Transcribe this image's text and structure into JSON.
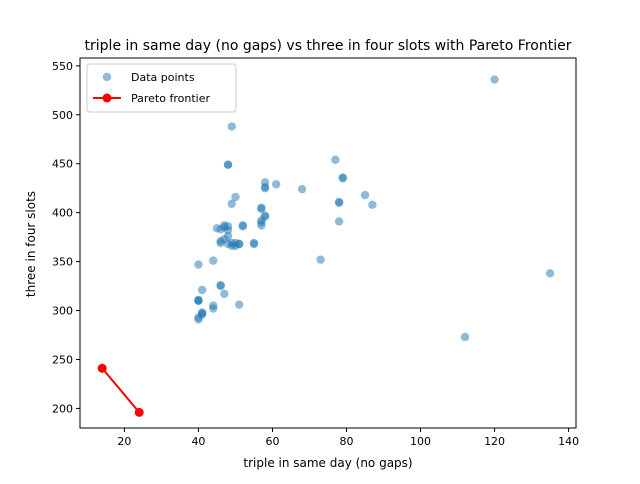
{
  "chart_data": {
    "type": "scatter",
    "title": "triple in same day (no gaps) vs three in four slots with Pareto Frontier",
    "xlabel": "triple in same day (no gaps)",
    "ylabel": "three in four slots",
    "xlim": [
      8,
      142
    ],
    "ylim": [
      180,
      558
    ],
    "xticks": [
      20,
      40,
      60,
      80,
      100,
      120,
      140
    ],
    "yticks": [
      200,
      250,
      300,
      350,
      400,
      450,
      500,
      550
    ],
    "grid": false,
    "legend_position": "top-left",
    "series": [
      {
        "name": "Data points",
        "kind": "scatter",
        "color": "#1f77b4",
        "alpha": 0.5,
        "points": [
          [
            120,
            536
          ],
          [
            49,
            488
          ],
          [
            77,
            454
          ],
          [
            48,
            449
          ],
          [
            48,
            449
          ],
          [
            58,
            431
          ],
          [
            61,
            429
          ],
          [
            58,
            426
          ],
          [
            58,
            425
          ],
          [
            68,
            424
          ],
          [
            79,
            436
          ],
          [
            79,
            435
          ],
          [
            85,
            418
          ],
          [
            50,
            416
          ],
          [
            78,
            411
          ],
          [
            78,
            410
          ],
          [
            49,
            409
          ],
          [
            87,
            408
          ],
          [
            57,
            405
          ],
          [
            57,
            404
          ],
          [
            58,
            397
          ],
          [
            58,
            396
          ],
          [
            57,
            392
          ],
          [
            57,
            390
          ],
          [
            78,
            391
          ],
          [
            57,
            387
          ],
          [
            47,
            387
          ],
          [
            48,
            386
          ],
          [
            52,
            387
          ],
          [
            52,
            386
          ],
          [
            47,
            385
          ],
          [
            45,
            384
          ],
          [
            46,
            383
          ],
          [
            48,
            382
          ],
          [
            48,
            376
          ],
          [
            47,
            373
          ],
          [
            46,
            371
          ],
          [
            46,
            369
          ],
          [
            49,
            369
          ],
          [
            48,
            368
          ],
          [
            50,
            369
          ],
          [
            51,
            368
          ],
          [
            51,
            368
          ],
          [
            55,
            369
          ],
          [
            55,
            368
          ],
          [
            49,
            366
          ],
          [
            50,
            366
          ],
          [
            73,
            352
          ],
          [
            44,
            351
          ],
          [
            40,
            347
          ],
          [
            135,
            338
          ],
          [
            46,
            326
          ],
          [
            46,
            325
          ],
          [
            41,
            321
          ],
          [
            47,
            317
          ],
          [
            40,
            311
          ],
          [
            40,
            310
          ],
          [
            40,
            310
          ],
          [
            44,
            305
          ],
          [
            44,
            302
          ],
          [
            51,
            306
          ],
          [
            41,
            298
          ],
          [
            41,
            297
          ],
          [
            41,
            296
          ],
          [
            40,
            293
          ],
          [
            40,
            291
          ],
          [
            112,
            273
          ]
        ]
      },
      {
        "name": "Pareto frontier",
        "kind": "line",
        "color": "#ff0000",
        "points": [
          [
            14,
            241
          ],
          [
            24,
            196
          ]
        ]
      }
    ]
  }
}
